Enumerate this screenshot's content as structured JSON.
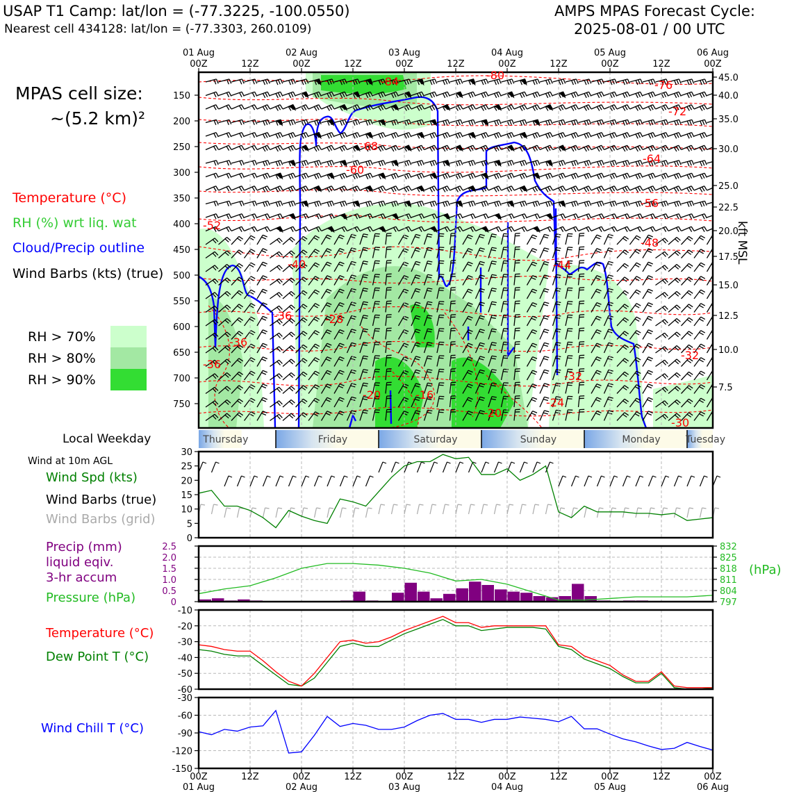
{
  "header": {
    "left_line1": "USAP T1 Camp: lat/lon = (-77.3225, -100.0550)",
    "left_line2": "Nearest cell 434128: lat/lon = (-77.3303, 260.0109)",
    "right_line1": "AMPS MPAS Forecast Cycle:",
    "right_line2": "2025-08-01 / 00 UTC"
  },
  "cell_size": {
    "line1": "MPAS cell size:",
    "line2": "~(5.2 km)²"
  },
  "legend_main": {
    "temperature": "Temperature (°C)",
    "rh": "RH (%) wrt liq. wat",
    "cloud": "Cloud/Precip outline",
    "wind": "Wind Barbs (kts) (true)"
  },
  "rh_legend": [
    "RH > 70%",
    "RH > 80%",
    "RH > 90%"
  ],
  "colors": {
    "temperature": "#ff0000",
    "rh": "#33cc33",
    "cloud": "#0000ff",
    "rh70": "#ccffcc",
    "rh80": "#a3e8a3",
    "rh90": "#33dd33",
    "wind_spd": "#008000",
    "precip": "#800080",
    "pressure": "#22bb22",
    "windchill": "#0000ff",
    "grid_barbs": "#aaaaaa"
  },
  "top_time_ticks": [
    [
      "01 Aug",
      "00Z"
    ],
    [
      "",
      "12Z"
    ],
    [
      "02 Aug",
      "00Z"
    ],
    [
      "",
      "12Z"
    ],
    [
      "03 Aug",
      "00Z"
    ],
    [
      "",
      "12Z"
    ],
    [
      "04 Aug",
      "00Z"
    ],
    [
      "",
      "12Z"
    ],
    [
      "05 Aug",
      "00Z"
    ],
    [
      "",
      "12Z"
    ],
    [
      "06 Aug",
      "00Z"
    ]
  ],
  "bottom_time_ticks": [
    [
      "00Z",
      "01 Aug"
    ],
    [
      "12Z",
      ""
    ],
    [
      "00Z",
      "02 Aug"
    ],
    [
      "12Z",
      ""
    ],
    [
      "00Z",
      "03 Aug"
    ],
    [
      "12Z",
      ""
    ],
    [
      "00Z",
      "04 Aug"
    ],
    [
      "12Z",
      ""
    ],
    [
      "00Z",
      "05 Aug"
    ],
    [
      "12Z",
      ""
    ],
    [
      "00Z",
      "06 Aug"
    ]
  ],
  "pressure_ticks": [
    "150",
    "200",
    "250",
    "300",
    "350",
    "400",
    "450",
    "500",
    "550",
    "600",
    "650",
    "700",
    "750"
  ],
  "kft_ticks": [
    "45.0",
    "40.0",
    "35.0",
    "30.0",
    "25.0",
    "22.5",
    "20.0",
    "17.5",
    "15.0",
    "12.5",
    "10.0",
    "7.5"
  ],
  "kft_label": "kft MSL",
  "temperature_contour_labels": [
    "-84",
    "-80",
    "-76",
    "-72",
    "-68",
    "-64",
    "-60",
    "-56",
    "-52",
    "-48",
    "-44",
    "-40",
    "-36",
    "-36",
    "-36",
    "-32",
    "-32",
    "-28",
    "-24",
    "-20",
    "-20",
    "-16",
    "-30"
  ],
  "weekday": {
    "label": "Local Weekday",
    "days": [
      "Thursday",
      "Friday",
      "Saturday",
      "Sunday",
      "Monday",
      "Tuesday"
    ]
  },
  "surface_wind": {
    "title": "Wind at 10m AGL",
    "labels": [
      "Wind Spd (kts)",
      "Wind Barbs (true)",
      "Wind Barbs (grid)"
    ],
    "yticks": [
      "30",
      "25",
      "20",
      "15",
      "10",
      "5",
      "0"
    ]
  },
  "precip_panel": {
    "labels": [
      "Precip (mm)",
      "liquid eqiv.",
      "3-hr accum",
      "Pressure (hPa)"
    ],
    "left_ticks": [
      "2.5",
      "2.0",
      "1.5",
      "1.0",
      "0.5",
      "0"
    ],
    "right_ticks": [
      "832",
      "825",
      "818",
      "811",
      "804",
      "797"
    ],
    "right_unit": "(hPa)"
  },
  "temp_panel": {
    "labels": [
      "Temperature (°C)",
      "Dew Point T (°C)"
    ],
    "yticks": [
      "-10",
      "-20",
      "-30",
      "-40",
      "-50",
      "-60"
    ]
  },
  "chill_panel": {
    "label": "Wind Chill T (°C)",
    "yticks": [
      "-30",
      "-60",
      "-90",
      "-120",
      "-150"
    ]
  },
  "chart_data": [
    {
      "type": "line",
      "title": "Wind at 10m AGL",
      "ylabel": "Wind Spd (kts)",
      "x_hours": [
        0,
        3,
        6,
        9,
        12,
        15,
        18,
        21,
        24,
        27,
        30,
        33,
        36,
        39,
        42,
        45,
        48,
        51,
        54,
        57,
        60,
        63,
        66,
        69,
        72,
        75,
        78,
        81,
        84,
        87,
        90,
        93,
        96,
        99,
        102,
        105,
        108,
        111,
        114,
        117,
        120
      ],
      "series": [
        {
          "name": "Wind Spd (kts)",
          "values": [
            15.5,
            16.5,
            11,
            11,
            9.5,
            7,
            3.5,
            9.5,
            7.5,
            6,
            5,
            13.5,
            12.5,
            11,
            16,
            21,
            25,
            26.5,
            26.5,
            29,
            27.5,
            28,
            22,
            22,
            24,
            20,
            22,
            25,
            9,
            7,
            11,
            9,
            9,
            9,
            8.5,
            8.5,
            8,
            8.5,
            6,
            6.5,
            7
          ]
        }
      ],
      "ylim": [
        0,
        30
      ]
    },
    {
      "type": "bar",
      "title": "Precip (mm) liquid eqiv. 3-hr accum",
      "x_hours": [
        1.5,
        4.5,
        7.5,
        10.5,
        13.5,
        16.5,
        19.5,
        22.5,
        25.5,
        28.5,
        31.5,
        34.5,
        37.5,
        40.5,
        43.5,
        46.5,
        49.5,
        52.5,
        55.5,
        58.5,
        61.5,
        64.5,
        67.5,
        70.5,
        73.5,
        76.5,
        79.5,
        82.5,
        85.5,
        88.5,
        91.5,
        94.5,
        97.5,
        100.5,
        103.5,
        106.5,
        109.5,
        112.5,
        115.5,
        118.5
      ],
      "values": [
        0.1,
        0.15,
        0.05,
        0.1,
        0.05,
        0,
        0,
        0,
        0,
        0,
        0,
        0.05,
        0.45,
        0.05,
        0,
        0.4,
        0.85,
        0.45,
        0.15,
        0.35,
        0.6,
        0.9,
        0.75,
        0.55,
        0.45,
        0.4,
        0.25,
        0.2,
        0.25,
        0.8,
        0.25,
        0.05,
        0,
        0.05,
        0.05,
        0,
        0,
        0,
        0,
        0
      ],
      "ylim": [
        0,
        2.5
      ]
    },
    {
      "type": "line",
      "title": "Pressure (hPa)",
      "x_hours": [
        0,
        6,
        12,
        18,
        24,
        30,
        36,
        42,
        48,
        54,
        60,
        66,
        72,
        78,
        84,
        90,
        96,
        102,
        108,
        114,
        120
      ],
      "series": [
        {
          "name": "Pressure (hPa)",
          "values": [
            802,
            805,
            807,
            812,
            818,
            821,
            821,
            820,
            818,
            815,
            810,
            811,
            808,
            803,
            798,
            798,
            799,
            800,
            800,
            800,
            801
          ]
        }
      ],
      "ylim": [
        797,
        832
      ]
    },
    {
      "type": "line",
      "title": "Temperature / Dew Point",
      "x_hours": [
        0,
        3,
        6,
        9,
        12,
        15,
        18,
        21,
        24,
        27,
        30,
        33,
        36,
        39,
        42,
        45,
        48,
        51,
        54,
        57,
        60,
        63,
        66,
        69,
        72,
        75,
        78,
        81,
        84,
        87,
        90,
        93,
        96,
        99,
        102,
        105,
        108,
        111,
        114,
        117,
        120
      ],
      "series": [
        {
          "name": "Temperature (°C)",
          "values": [
            -32,
            -33,
            -35,
            -36,
            -36,
            -42,
            -49,
            -55,
            -58,
            -50,
            -40,
            -30,
            -29,
            -31,
            -30,
            -27,
            -23,
            -20,
            -17,
            -14,
            -18,
            -18,
            -21,
            -20,
            -20,
            -20,
            -20,
            -20,
            -32,
            -33,
            -39,
            -42,
            -45,
            -51,
            -55,
            -55,
            -49,
            -58,
            -59,
            -59,
            -59
          ]
        },
        {
          "name": "Dew Point T (°C)",
          "values": [
            -35,
            -36,
            -38,
            -39,
            -39,
            -45,
            -51,
            -57,
            -58,
            -53,
            -43,
            -33,
            -31,
            -33,
            -33,
            -29,
            -25,
            -22,
            -19,
            -16,
            -20,
            -20,
            -23,
            -22,
            -21,
            -21,
            -21,
            -22,
            -33,
            -35,
            -41,
            -44,
            -47,
            -52,
            -56,
            -56,
            -50,
            -59,
            -60,
            -60,
            -59
          ]
        }
      ],
      "ylim": [
        -60,
        -10
      ]
    },
    {
      "type": "line",
      "title": "Wind Chill T (°C)",
      "x_hours": [
        0,
        3,
        6,
        9,
        12,
        15,
        18,
        21,
        24,
        27,
        30,
        33,
        36,
        39,
        42,
        45,
        48,
        51,
        54,
        57,
        60,
        63,
        66,
        69,
        72,
        75,
        78,
        81,
        84,
        87,
        90,
        93,
        96,
        99,
        102,
        105,
        108,
        111,
        114,
        117,
        120
      ],
      "series": [
        {
          "name": "Wind Chill T (°C)",
          "values": [
            -88,
            -93,
            -84,
            -87,
            -80,
            -78,
            -52,
            -124,
            -122,
            -94,
            -62,
            -79,
            -74,
            -77,
            -84,
            -84,
            -80,
            -69,
            -60,
            -57,
            -67,
            -67,
            -72,
            -67,
            -67,
            -63,
            -65,
            -67,
            -71,
            -62,
            -83,
            -83,
            -92,
            -100,
            -105,
            -112,
            -118,
            -116,
            -106,
            -113,
            -119
          ]
        }
      ],
      "ylim": [
        -150,
        -30
      ]
    }
  ]
}
